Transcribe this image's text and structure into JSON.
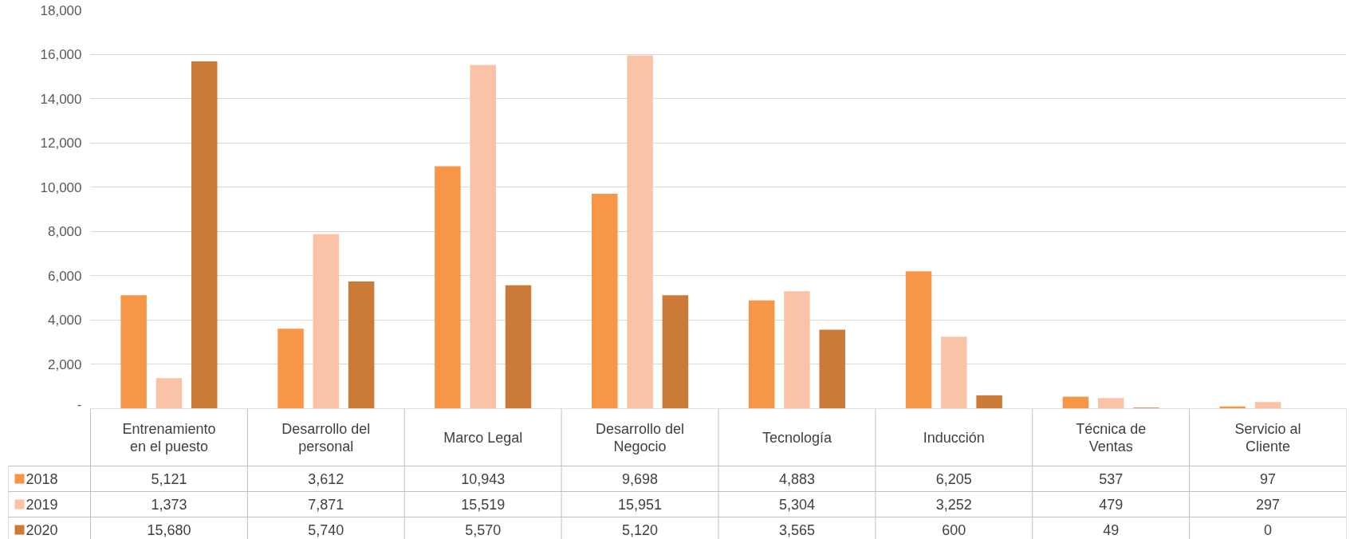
{
  "chart_data": {
    "type": "bar",
    "categories": [
      "Entrenamiento en el puesto",
      "Desarrollo del personal",
      "Marco Legal",
      "Desarrollo del Negocio",
      "Tecnología",
      "Inducción",
      "Técnica de Ventas",
      "Servicio al Cliente"
    ],
    "series": [
      {
        "name": "2018",
        "color": "#f79646",
        "values": [
          5121,
          3612,
          10943,
          9698,
          4883,
          6205,
          537,
          97
        ],
        "value_labels": [
          "5,121",
          "3,612",
          "10,943",
          "9,698",
          "4,883",
          "6,205",
          "537",
          "97"
        ]
      },
      {
        "name": "2019",
        "color": "#fac3a8",
        "values": [
          1373,
          7871,
          15519,
          15951,
          5304,
          3252,
          479,
          297
        ],
        "value_labels": [
          "1,373",
          "7,871",
          "15,519",
          "15,951",
          "5,304",
          "3,252",
          "479",
          "297"
        ]
      },
      {
        "name": "2020",
        "color": "#cc7a38",
        "values": [
          15680,
          5740,
          5570,
          5120,
          3565,
          600,
          49,
          0
        ],
        "value_labels": [
          "15,680",
          "5,740",
          "5,570",
          "5,120",
          "3,565",
          "600",
          "49",
          "0"
        ]
      }
    ],
    "ylim": [
      0,
      18000
    ],
    "yticks": [
      {
        "value": 0,
        "label": "-"
      },
      {
        "value": 2000,
        "label": "2,000"
      },
      {
        "value": 4000,
        "label": "4,000"
      },
      {
        "value": 6000,
        "label": "6,000"
      },
      {
        "value": 8000,
        "label": "8,000"
      },
      {
        "value": 10000,
        "label": "10,000"
      },
      {
        "value": 12000,
        "label": "12,000"
      },
      {
        "value": 14000,
        "label": "14,000"
      },
      {
        "value": 16000,
        "label": "16,000"
      },
      {
        "value": 18000,
        "label": "18,000"
      }
    ],
    "grid": "y",
    "legend": "bottom left"
  }
}
